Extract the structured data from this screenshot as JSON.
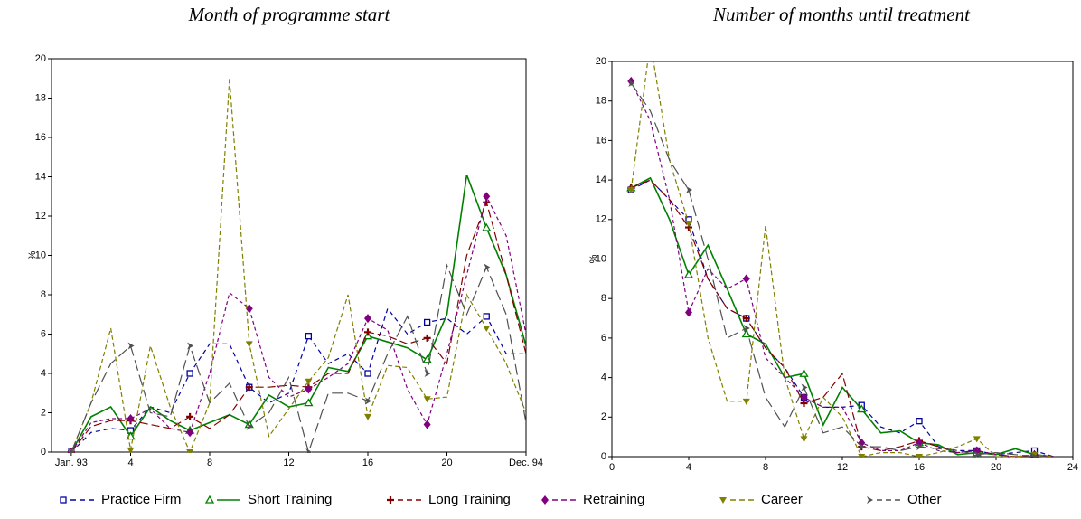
{
  "chart_data": [
    {
      "type": "line",
      "title": "Month of programme start",
      "ylabel": "%",
      "x": [
        1,
        2,
        3,
        4,
        5,
        6,
        7,
        8,
        9,
        10,
        11,
        12,
        13,
        14,
        15,
        16,
        17,
        18,
        19,
        20,
        21,
        22,
        23,
        24
      ],
      "xlim": [
        0,
        24
      ],
      "ylim": [
        0,
        20
      ],
      "xticks": [
        {
          "value": 1,
          "label": "Jan. 93"
        },
        4,
        8,
        12,
        16,
        20,
        {
          "value": 24,
          "label": "Dec. 94"
        }
      ],
      "yticks": [
        0,
        2,
        4,
        6,
        8,
        10,
        12,
        14,
        16,
        18,
        20
      ],
      "series": [
        {
          "name": "Practice Firm",
          "color": "#0000a0",
          "values": [
            0,
            1,
            1.2,
            1.1,
            2.3,
            2,
            4,
            5.5,
            5.5,
            3.3,
            2.5,
            3,
            5.9,
            4.5,
            5,
            4,
            7.3,
            6,
            6.6,
            6.8,
            6,
            6.9,
            5,
            5
          ]
        },
        {
          "name": "Short Training",
          "color": "#008000",
          "values": [
            0,
            1.8,
            2.3,
            0.8,
            2.3,
            1.6,
            1.1,
            1.5,
            1.9,
            1.4,
            2.9,
            2.3,
            2.5,
            4.3,
            4.1,
            5.9,
            5.6,
            5.3,
            4.7,
            7,
            14.1,
            11.4,
            9,
            5.4
          ]
        },
        {
          "name": "Long Training",
          "color": "#800000",
          "values": [
            0,
            1.3,
            1.6,
            1.6,
            1.4,
            1.2,
            1.8,
            1.2,
            1.9,
            3.3,
            3.3,
            3.4,
            3.3,
            4,
            4,
            6.1,
            5.9,
            5.5,
            5.8,
            4.5,
            10,
            12.7,
            9,
            5
          ]
        },
        {
          "name": "Retraining",
          "color": "#800080",
          "values": [
            0,
            1.5,
            1.7,
            1.7,
            2.2,
            1.2,
            1,
            4,
            8.1,
            7.3,
            3.8,
            2.8,
            3.2,
            3.8,
            4.5,
            6.8,
            6.2,
            3.2,
            1.4,
            5,
            9,
            13,
            11,
            6
          ]
        },
        {
          "name": "Career",
          "color": "#808000",
          "values": [
            0,
            2.5,
            6.3,
            0.1,
            5.4,
            2.3,
            0,
            2.5,
            19,
            5.5,
            0.8,
            2.2,
            3.6,
            4.8,
            8,
            1.8,
            4.4,
            4.3,
            2.7,
            2.8,
            8,
            6.3,
            4.5,
            2
          ]
        },
        {
          "name": "Other",
          "color": "#505050",
          "values": [
            0,
            2.5,
            4.5,
            5.4,
            2,
            1.8,
            5.4,
            2.5,
            3.5,
            1.3,
            2,
            3.8,
            0,
            3,
            3,
            2.6,
            5,
            6.9,
            4,
            9.5,
            7,
            9.4,
            7,
            1.5
          ]
        }
      ]
    },
    {
      "type": "line",
      "title": "Number of months until treatment",
      "ylabel": "%",
      "x": [
        1,
        2,
        3,
        4,
        5,
        6,
        7,
        8,
        9,
        10,
        11,
        12,
        13,
        14,
        15,
        16,
        17,
        18,
        19,
        20,
        21,
        22,
        23
      ],
      "xlim": [
        0,
        24
      ],
      "ylim": [
        0,
        20
      ],
      "xticks": [
        0,
        4,
        8,
        12,
        16,
        20,
        24
      ],
      "yticks": [
        0,
        2,
        4,
        6,
        8,
        10,
        12,
        14,
        16,
        18,
        20
      ],
      "series": [
        {
          "color": "#0000a0",
          "values": [
            13.5,
            14,
            13,
            12,
            9,
            7.5,
            7,
            5.5,
            4.5,
            3,
            2.5,
            2.5,
            2.6,
            1.5,
            1.2,
            1.8,
            0.5,
            0.3,
            0.3,
            0.1,
            0.2,
            0.3,
            0
          ]
        },
        {
          "color": "#008000",
          "values": [
            13.6,
            14.1,
            12,
            9.2,
            10.7,
            8.5,
            6.2,
            5.7,
            4,
            4.2,
            1.6,
            3.5,
            2.4,
            1.2,
            1.3,
            0.7,
            0.6,
            0.1,
            0.2,
            0.1,
            0.4,
            0.1,
            0
          ]
        },
        {
          "color": "#800000",
          "values": [
            13.6,
            14,
            13,
            11.6,
            9,
            7.5,
            7,
            5.5,
            4.5,
            2.7,
            3,
            4.2,
            0.5,
            0.3,
            0.5,
            0.8,
            0.5,
            0.2,
            0.3,
            0.1,
            0,
            0,
            0
          ]
        },
        {
          "color": "#800080",
          "values": [
            19,
            17,
            13,
            7.3,
            9.5,
            8.5,
            9,
            5,
            4,
            3,
            2.5,
            2.5,
            0.7,
            0.3,
            0.3,
            0.7,
            0.3,
            0.2,
            0.3,
            0.1,
            0,
            0.1,
            0
          ]
        },
        {
          "color": "#808000",
          "values": [
            13.5,
            21,
            15,
            11.8,
            6,
            2.8,
            2.8,
            11.7,
            4,
            0.9,
            3,
            2,
            0,
            0.2,
            0.2,
            0,
            0.2,
            0.5,
            0.9,
            0,
            0,
            0.1,
            0
          ]
        },
        {
          "color": "#505050",
          "values": [
            18.9,
            17.5,
            15,
            13.5,
            10,
            6,
            6.5,
            3,
            1.5,
            3.5,
            1.2,
            1.5,
            0.5,
            0.5,
            0.3,
            0.5,
            0.4,
            0.3,
            0.1,
            0.2,
            0.1,
            0,
            0
          ]
        }
      ]
    }
  ]
}
